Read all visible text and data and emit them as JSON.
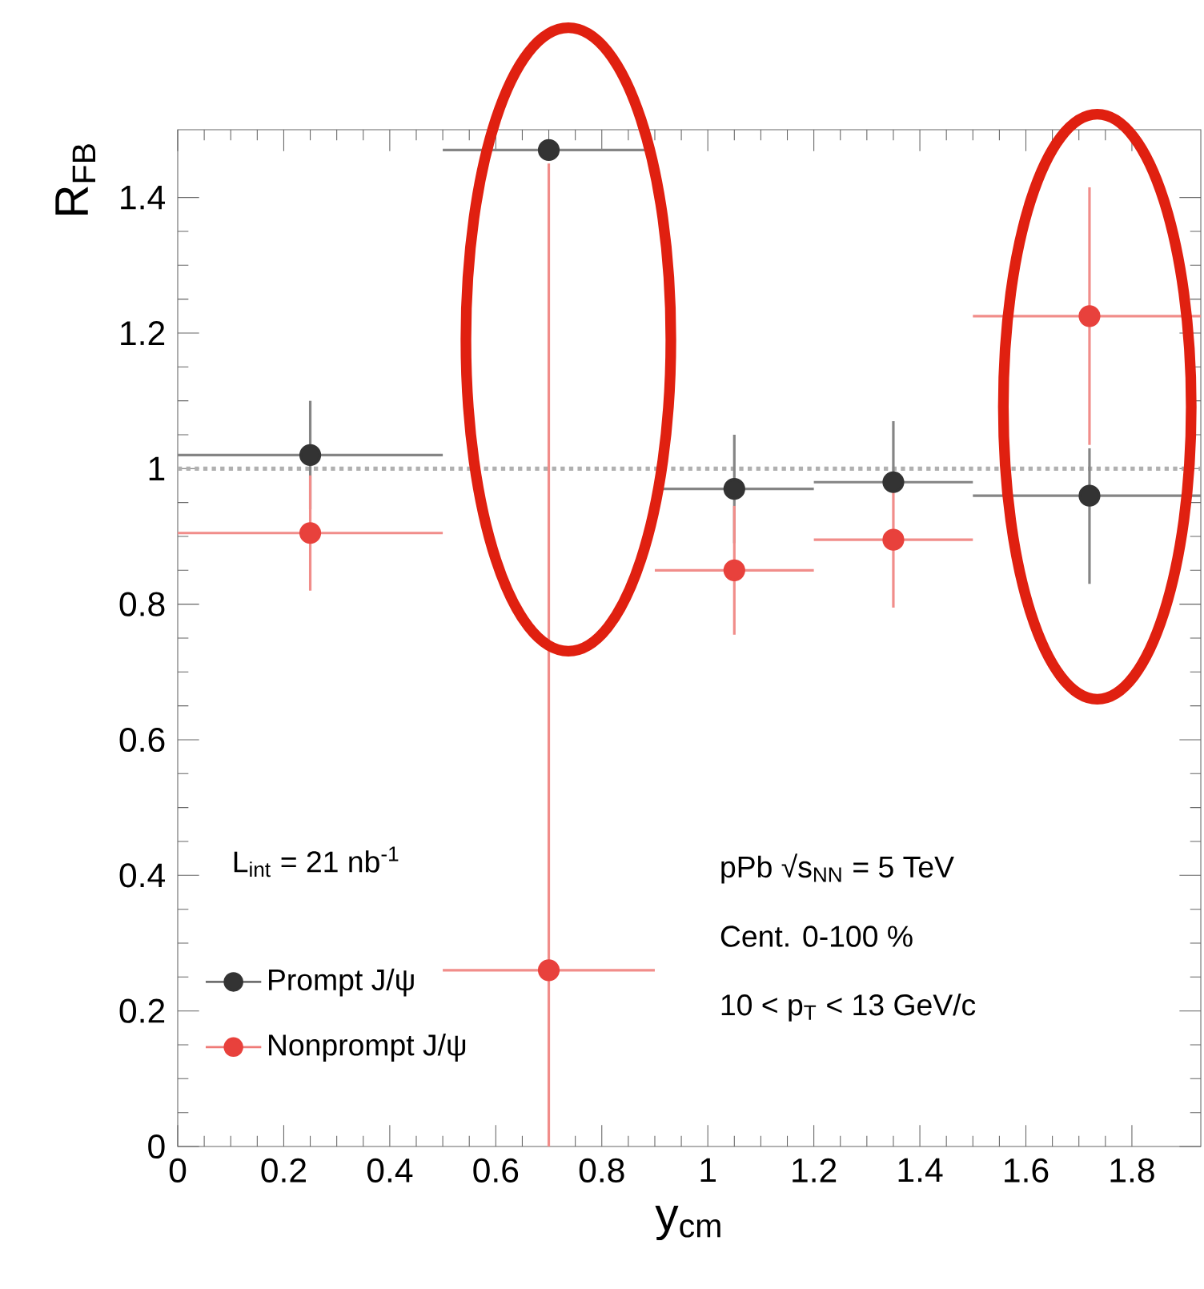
{
  "chart_data": {
    "type": "scatter",
    "xlabel": "y$_{cm}$",
    "ylabel": "R$_{FB}$",
    "xlim": [
      0,
      1.93
    ],
    "ylim": [
      0,
      1.5
    ],
    "xticks": [
      0,
      0.2,
      0.4,
      0.6,
      0.8,
      1,
      1.2,
      1.4,
      1.6,
      1.8
    ],
    "yticks": [
      0,
      0.2,
      0.4,
      0.6,
      0.8,
      1,
      1.2,
      1.4
    ],
    "marker": "circle",
    "legend": "bottom left",
    "series": [
      {
        "name": "Prompt J/ψ",
        "color": "#333333",
        "x": [
          0.25,
          0.7,
          1.05,
          1.35,
          1.72
        ],
        "values": [
          1.02,
          1.47,
          0.97,
          0.98,
          0.96
        ],
        "errors": [
          [
            0.94,
            1.1
          ],
          null,
          [
            0.89,
            1.05
          ],
          [
            0.98,
            1.07
          ],
          [
            0.83,
            1.03
          ]
        ],
        "xerrors": [
          [
            0,
            0.5
          ],
          [
            0.5,
            0.9
          ],
          [
            0.9,
            1.2
          ],
          [
            1.2,
            1.5
          ],
          [
            1.5,
            1.93
          ]
        ]
      },
      {
        "name": "Nonprompt J/ψ",
        "color": "#e8413c",
        "x": [
          0.25,
          0.7,
          1.05,
          1.35,
          1.72
        ],
        "values": [
          0.905,
          0.26,
          0.85,
          0.895,
          1.225
        ],
        "errors": [
          [
            0.82,
            0.99
          ],
          [
            0,
            1.45
          ],
          [
            0.755,
            0.945
          ],
          [
            0.795,
            0.995
          ],
          [
            1.035,
            1.415
          ]
        ],
        "xerrors": [
          [
            0,
            0.5
          ],
          [
            0.5,
            0.9
          ],
          [
            0.9,
            1.2
          ],
          [
            1.2,
            1.5
          ],
          [
            1.5,
            1.93
          ]
        ]
      }
    ],
    "ref_lines": [
      {
        "axis": "y",
        "value": 1,
        "color": "#b0b0b0",
        "line_style": "dotted"
      }
    ],
    "annotations": [
      "L$_{int}$ = 21 nb$^{-1}$",
      "pPb √s$_{NN}$ = 5 TeV",
      "Cent. 0-100 %",
      "10 < p$_{T}$ < 13 GeV/c"
    ]
  }
}
